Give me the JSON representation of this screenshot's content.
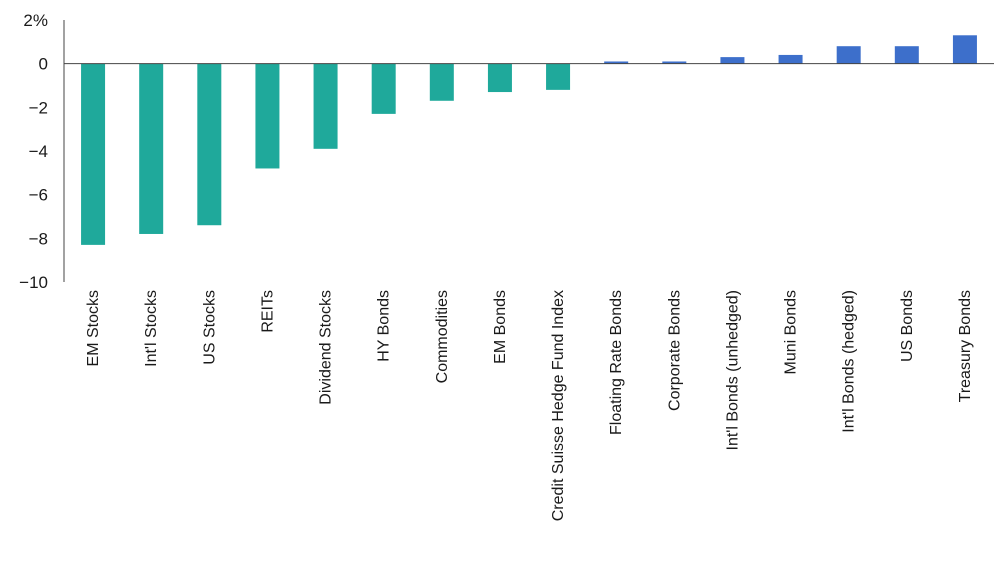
{
  "chart_data": {
    "type": "bar",
    "title": "",
    "xlabel": "",
    "ylabel": "",
    "ylim": [
      -10,
      2
    ],
    "yticks": [
      {
        "value": 2,
        "label": "2%"
      },
      {
        "value": 0,
        "label": "0"
      },
      {
        "value": -2,
        "label": "−2"
      },
      {
        "value": -4,
        "label": "−4"
      },
      {
        "value": -6,
        "label": "−6"
      },
      {
        "value": -8,
        "label": "−8"
      },
      {
        "value": -10,
        "label": "−10"
      }
    ],
    "grid": false,
    "legend": "none",
    "categories": [
      "EM Stocks",
      "Int'l Stocks",
      "US Stocks",
      "REITs",
      "Dividend Stocks",
      "HY Bonds",
      "Commodities",
      "EM Bonds",
      "Credit Suisse Hedge Fund Index",
      "Floating Rate Bonds",
      "Corporate Bonds",
      "Int'l Bonds (unhedged)",
      "Muni Bonds",
      "Int'l Bonds (hedged)",
      "US Bonds",
      "Treasury Bonds"
    ],
    "values": [
      -8.3,
      -7.8,
      -7.4,
      -4.8,
      -3.9,
      -2.3,
      -1.7,
      -1.3,
      -1.2,
      0.1,
      0.1,
      0.3,
      0.4,
      0.8,
      0.8,
      1.3
    ],
    "colors": {
      "negative": "#1fa99b",
      "positive": "#3d6fcb",
      "axis": "#444444"
    }
  }
}
